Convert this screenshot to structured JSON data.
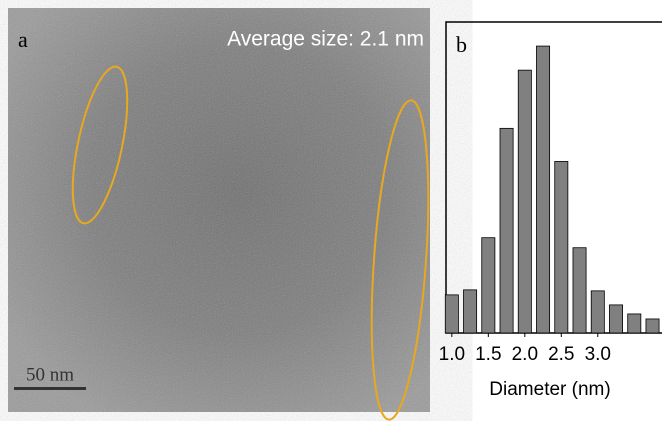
{
  "image": {
    "panel_label": "a",
    "caption": "Average size: 2.1 nm",
    "scale_bar": "50 nm"
  },
  "chart_data": {
    "type": "histogram",
    "panel_label": "b",
    "x_label": "Diameter (nm)",
    "color": "#808080",
    "bins": [
      0.875,
      1.125,
      1.375,
      1.625,
      1.875,
      2.125,
      2.375,
      2.625,
      2.875,
      3.125,
      3.375,
      3.625,
      3.875
    ],
    "values": [
      38,
      43,
      95,
      204,
      262,
      286,
      171,
      85,
      42,
      28,
      19,
      14
    ],
    "xlim": [
      0.92,
      3.88
    ],
    "ylim": [
      0,
      310
    ],
    "xticks": [
      {
        "value": 1,
        "label": "1.0"
      },
      {
        "value": 1.5,
        "label": "1.5"
      },
      {
        "value": 2,
        "label": "2.0"
      },
      {
        "value": 2.5,
        "label": "2.5"
      },
      {
        "value": 3,
        "label": "3.0"
      }
    ]
  }
}
